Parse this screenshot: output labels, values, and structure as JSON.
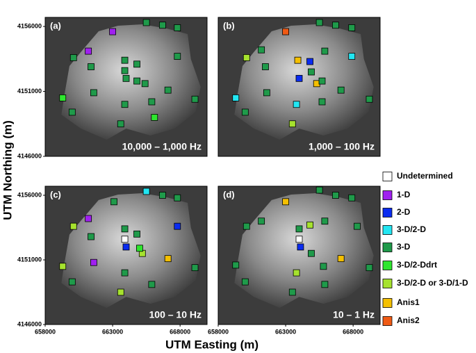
{
  "x_label": "UTM Easting (m)",
  "y_label": "UTM Northing (m)",
  "legend": [
    {
      "name": "Undetermined",
      "color": "#ffffff"
    },
    {
      "name": "1-D",
      "color": "#a020f0"
    },
    {
      "name": "2-D",
      "color": "#0a2cf0"
    },
    {
      "name": "3-D/2-D",
      "color": "#22e6f2"
    },
    {
      "name": "3-D",
      "color": "#1f9a4a"
    },
    {
      "name": "3-D/2-Ddrt",
      "color": "#2ee62e"
    },
    {
      "name": "3-D/2-D or 3-D/1-D",
      "color": "#a6e22e"
    },
    {
      "name": "Anis1",
      "color": "#f5c000"
    },
    {
      "name": "Anis2",
      "color": "#f05a14"
    }
  ],
  "chart_data": [
    {
      "type": "scatter",
      "title": "(a)",
      "annotation": "10,000 – 1,000 Hz",
      "xlim": [
        658000,
        670000
      ],
      "ylim": [
        4146000,
        4156700
      ],
      "yticks": [
        4146000,
        4151000,
        4156000
      ],
      "series": [
        {
          "color": "#a020f0",
          "x": [
            663000,
            661200
          ],
          "y": [
            4155600,
            4154100
          ]
        },
        {
          "color": "#1f9a4a",
          "x": [
            665500,
            666700,
            667800,
            660100,
            663900,
            664800,
            667800,
            661400,
            663900,
            664000,
            664800,
            665400,
            667100,
            661600,
            669100,
            663900,
            665900,
            660000,
            663600
          ],
          "y": [
            4156300,
            4156100,
            4155900,
            4153600,
            4153400,
            4153100,
            4153700,
            4152900,
            4152600,
            4152000,
            4151800,
            4151600,
            4151100,
            4150900,
            4150400,
            4150000,
            4150200,
            4149400,
            4148500
          ]
        },
        {
          "color": "#2ee62e",
          "x": [
            659300,
            666100
          ],
          "y": [
            4150500,
            4149000
          ]
        }
      ]
    },
    {
      "type": "scatter",
      "title": "(b)",
      "annotation": "1,000 – 100 Hz",
      "xlim": [
        658000,
        670000
      ],
      "ylim": [
        4146000,
        4156700
      ],
      "series": [
        {
          "color": "#f05a14",
          "x": [
            663000
          ],
          "y": [
            4155600
          ]
        },
        {
          "color": "#22e6f2",
          "x": [
            667900,
            659300,
            663800
          ],
          "y": [
            4153700,
            4150500,
            4150000
          ]
        },
        {
          "color": "#0a2cf0",
          "x": [
            664800,
            664000
          ],
          "y": [
            4153300,
            4152000
          ]
        },
        {
          "color": "#f5c000",
          "x": [
            663900,
            665300
          ],
          "y": [
            4153400,
            4151600
          ]
        },
        {
          "color": "#a6e22e",
          "x": [
            660100,
            663500
          ],
          "y": [
            4153600,
            4148500
          ]
        },
        {
          "color": "#1f9a4a",
          "x": [
            665500,
            666700,
            667900,
            661200,
            665900,
            661500,
            664900,
            665700,
            667100,
            661600,
            669200,
            665700,
            660000
          ],
          "y": [
            4156300,
            4156100,
            4155900,
            4154200,
            4154100,
            4152900,
            4152500,
            4151800,
            4151100,
            4150900,
            4150400,
            4150200,
            4149400
          ]
        }
      ]
    },
    {
      "type": "scatter",
      "title": "(c)",
      "annotation": "100 – 10 Hz",
      "xlim": [
        658000,
        670000
      ],
      "ylim": [
        4146000,
        4156700
      ],
      "xticks": [
        658000,
        663000,
        668000
      ],
      "yticks": [
        4146000,
        4151000,
        4156000
      ],
      "series": [
        {
          "color": "#a020f0",
          "x": [
            661200,
            661600
          ],
          "y": [
            4154200,
            4150800
          ]
        },
        {
          "color": "#22e6f2",
          "x": [
            665500
          ],
          "y": [
            4156300
          ]
        },
        {
          "color": "#0a2cf0",
          "x": [
            664000,
            667800
          ],
          "y": [
            4152000,
            4153600
          ]
        },
        {
          "color": "#ffffff",
          "x": [
            663900
          ],
          "y": [
            4152600
          ]
        },
        {
          "color": "#f5c000",
          "x": [
            667100
          ],
          "y": [
            4151100
          ]
        },
        {
          "color": "#a6e22e",
          "x": [
            660100,
            659300,
            663600,
            665200
          ],
          "y": [
            4153600,
            4150500,
            4148500,
            4151500
          ]
        },
        {
          "color": "#2ee62e",
          "x": [
            665000
          ],
          "y": [
            4151900
          ]
        },
        {
          "color": "#1f9a4a",
          "x": [
            666700,
            667800,
            663100,
            663900,
            664800,
            661400,
            669100,
            660000,
            663900,
            665900
          ],
          "y": [
            4156000,
            4155800,
            4155500,
            4153400,
            4153000,
            4152800,
            4150400,
            4149300,
            4150000,
            4149100
          ]
        }
      ]
    },
    {
      "type": "scatter",
      "title": "(d)",
      "annotation": "10 – 1 Hz",
      "xlim": [
        658000,
        670000
      ],
      "ylim": [
        4146000,
        4156700
      ],
      "xticks": [
        658000,
        663000,
        668000
      ],
      "series": [
        {
          "color": "#f5c000",
          "x": [
            663000,
            667100
          ],
          "y": [
            4155500,
            4151100
          ]
        },
        {
          "color": "#ffffff",
          "x": [
            664000
          ],
          "y": [
            4152600
          ]
        },
        {
          "color": "#0a2cf0",
          "x": [
            664100
          ],
          "y": [
            4152000
          ]
        },
        {
          "color": "#a6e22e",
          "x": [
            664800,
            663800
          ],
          "y": [
            4153700,
            4150000
          ]
        },
        {
          "color": "#1f9a4a",
          "x": [
            665500,
            666700,
            667900,
            661200,
            660100,
            665900,
            664000,
            668300,
            664900,
            665800,
            659300,
            660000,
            669200,
            663500,
            665900
          ],
          "y": [
            4156400,
            4156000,
            4155800,
            4154000,
            4153600,
            4154000,
            4153400,
            4153600,
            4151500,
            4150500,
            4150600,
            4149300,
            4150400,
            4148500,
            4149100
          ]
        }
      ]
    }
  ]
}
